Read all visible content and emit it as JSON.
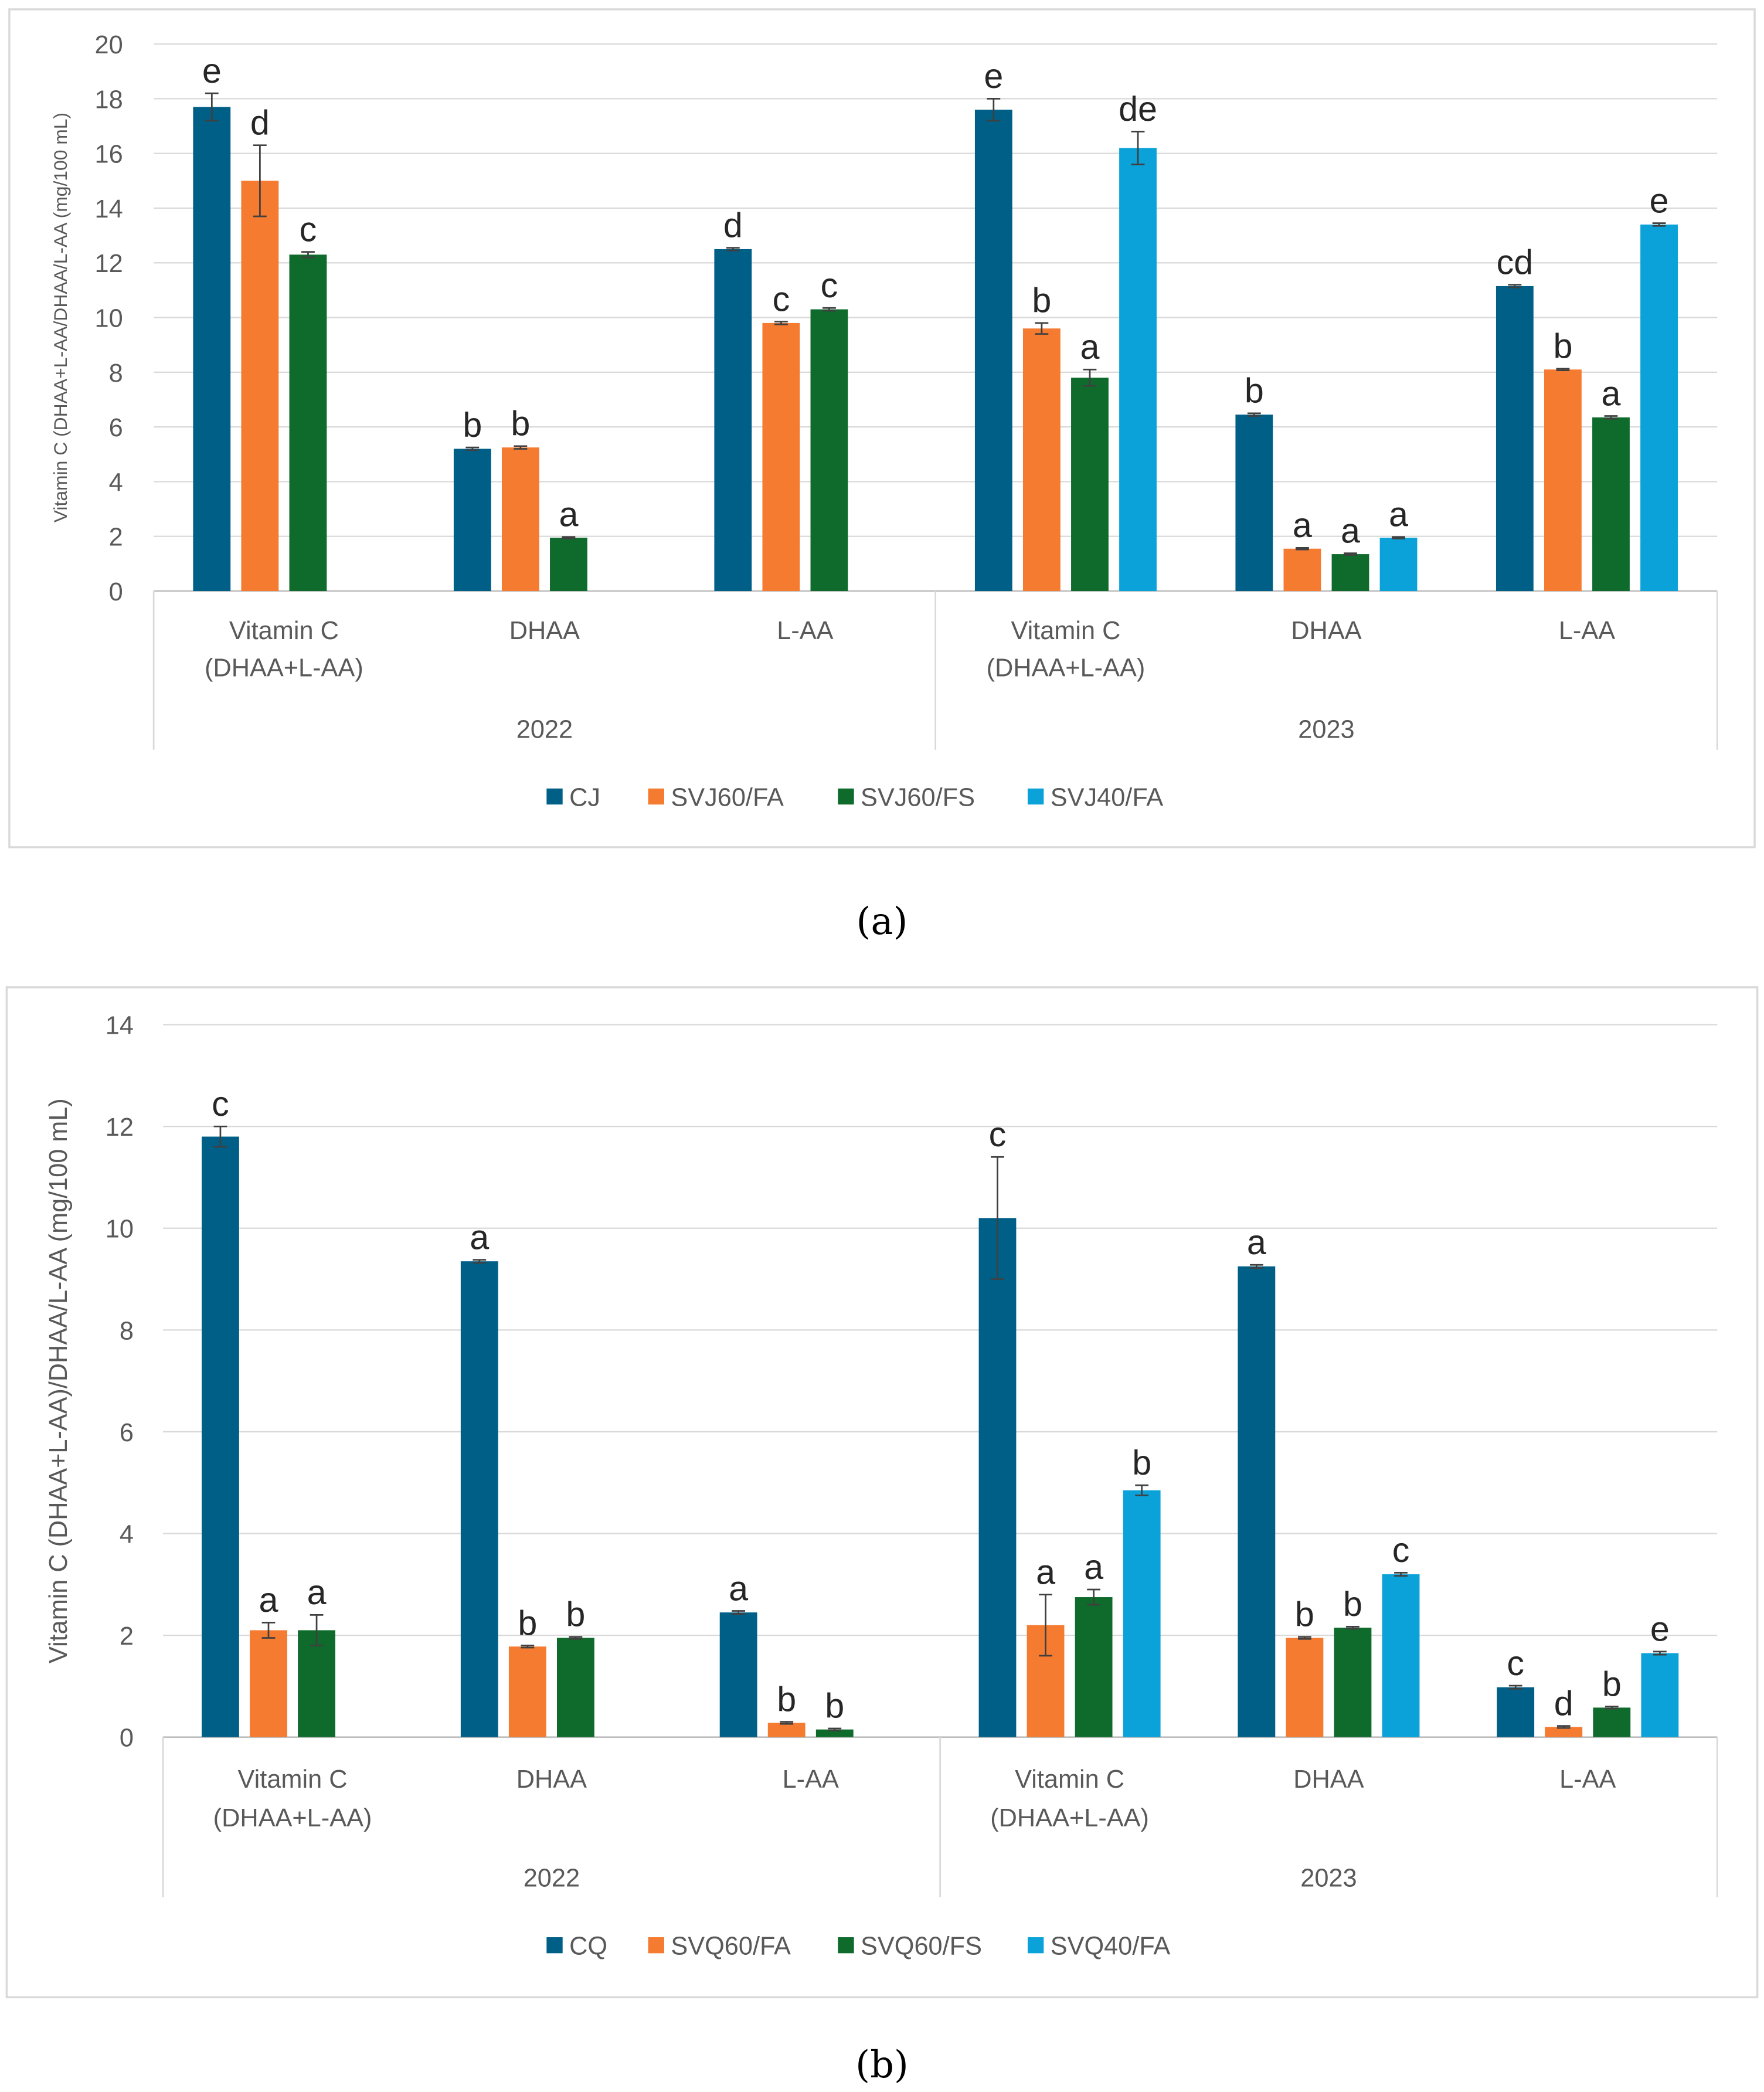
{
  "colors": {
    "s1": "#005F86",
    "s2": "#F47B30",
    "s3": "#0E6B2B",
    "s4": "#0AA2D8"
  },
  "chart_data": [
    {
      "type": "bar",
      "caption": "(a)",
      "ylabel": "Vitamin C (DHAA+L-AA/DHAA/L-AA (mg/100 mL)",
      "ylim": [
        0,
        20
      ],
      "yticks": [
        "0",
        "2",
        "4",
        "6",
        "8",
        "10",
        "12",
        "14",
        "16",
        "18",
        "20"
      ],
      "ystep": 2,
      "grid": true,
      "legend_position": "bottom",
      "years": [
        "2022",
        "2023"
      ],
      "categories": [
        [
          "Vitamin C",
          "(DHAA+L-AA)"
        ],
        [
          "DHAA"
        ],
        [
          "L-AA"
        ],
        [
          "Vitamin C",
          "(DHAA+L-AA)"
        ],
        [
          "DHAA"
        ],
        [
          "L-AA"
        ]
      ],
      "series": [
        {
          "name": "CJ",
          "values": [
            17.7,
            5.2,
            12.5,
            17.6,
            6.45,
            11.15
          ],
          "errors": [
            0.5,
            0.05,
            0.05,
            0.4,
            0.05,
            0.05
          ],
          "letters": [
            "e",
            "b",
            "d",
            "e",
            "b",
            "cd"
          ]
        },
        {
          "name": "SVJ60/FA",
          "values": [
            15.0,
            5.25,
            9.8,
            9.6,
            1.55,
            8.1
          ],
          "errors": [
            1.3,
            0.05,
            0.05,
            0.2,
            0.03,
            0.03
          ],
          "letters": [
            "d",
            "b",
            "c",
            "b",
            "a",
            "b"
          ]
        },
        {
          "name": "SVJ60/FS",
          "values": [
            12.3,
            1.95,
            10.3,
            7.8,
            1.35,
            6.35
          ],
          "errors": [
            0.1,
            0.03,
            0.05,
            0.3,
            0.03,
            0.05
          ],
          "letters": [
            "c",
            "a",
            "c",
            "a",
            "a",
            "a"
          ]
        },
        {
          "name": "SVJ40/FA",
          "values": [
            null,
            null,
            null,
            16.2,
            1.95,
            13.4
          ],
          "errors": [
            null,
            null,
            null,
            0.6,
            0.03,
            0.05
          ],
          "letters": [
            "",
            "",
            "",
            "de",
            "a",
            "e"
          ]
        }
      ]
    },
    {
      "type": "bar",
      "caption": "(b)",
      "ylabel": "Vitamin C (DHAA+L-AA)/DHAA/L-AA (mg/100 mL)",
      "ylim": [
        0,
        14
      ],
      "yticks": [
        "0",
        "2",
        "4",
        "6",
        "8",
        "10",
        "12",
        "14"
      ],
      "ystep": 2,
      "grid": true,
      "legend_position": "bottom",
      "years": [
        "2022",
        "2023"
      ],
      "categories": [
        [
          "Vitamin C",
          "(DHAA+L-AA)"
        ],
        [
          "DHAA"
        ],
        [
          "L-AA"
        ],
        [
          "Vitamin C",
          "(DHAA+L-AA)"
        ],
        [
          "DHAA"
        ],
        [
          "L-AA"
        ]
      ],
      "series": [
        {
          "name": "CQ",
          "values": [
            11.8,
            9.35,
            2.45,
            10.2,
            9.25,
            0.98
          ],
          "errors": [
            0.2,
            0.03,
            0.03,
            1.2,
            0.03,
            0.03
          ],
          "letters": [
            "c",
            "a",
            "a",
            "c",
            "a",
            "c"
          ]
        },
        {
          "name": "SVQ60/FA",
          "values": [
            2.1,
            1.78,
            0.28,
            2.2,
            1.95,
            0.2
          ],
          "errors": [
            0.15,
            0.02,
            0.02,
            0.6,
            0.02,
            0.02
          ],
          "letters": [
            "a",
            "b",
            "b",
            "a",
            "b",
            "d"
          ]
        },
        {
          "name": "SVQ60/FS",
          "values": [
            2.1,
            1.95,
            0.15,
            2.75,
            2.15,
            0.58
          ],
          "errors": [
            0.3,
            0.02,
            0.02,
            0.15,
            0.02,
            0.02
          ],
          "letters": [
            "a",
            "b",
            "b",
            "a",
            "b",
            "b"
          ]
        },
        {
          "name": "SVQ40/FA",
          "values": [
            null,
            null,
            null,
            4.85,
            3.2,
            1.65
          ],
          "errors": [
            null,
            null,
            null,
            0.1,
            0.03,
            0.03
          ],
          "letters": [
            "",
            "",
            "",
            "b",
            "c",
            "e"
          ]
        }
      ]
    }
  ]
}
